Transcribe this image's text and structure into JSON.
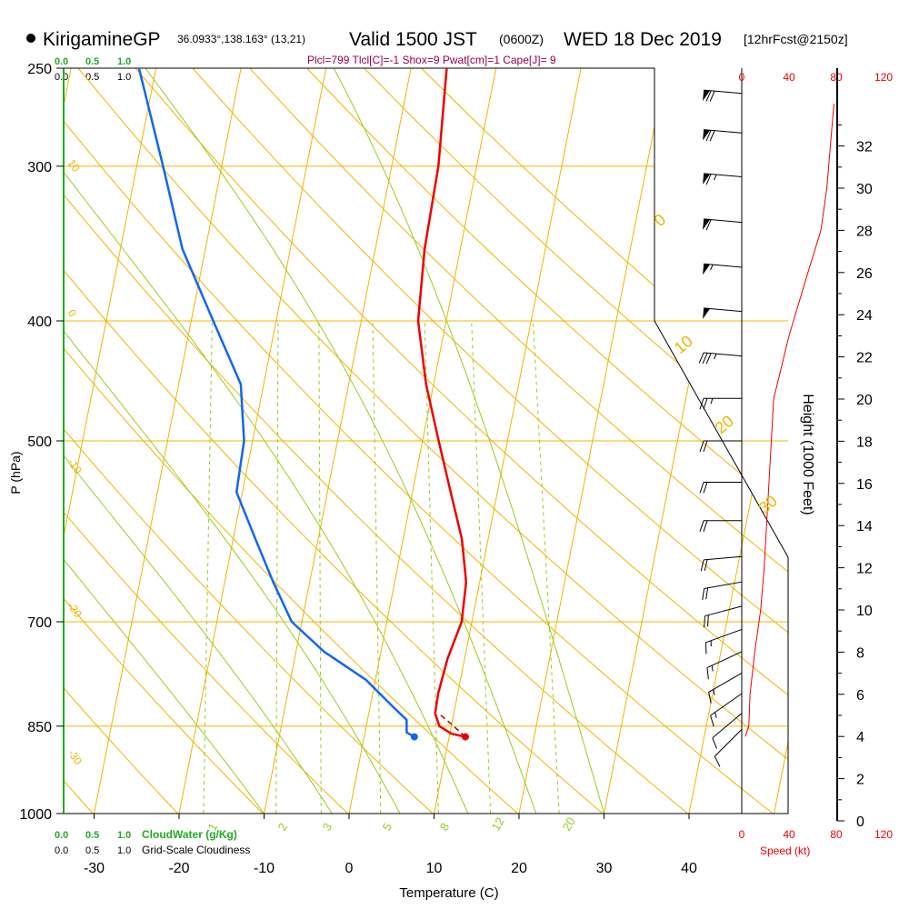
{
  "header": {
    "station": "KirigamineGP",
    "coords": "36.0933°,138.163° (13,21)",
    "valid": "Valid 1500 JST",
    "utc": "(0600Z)",
    "date": "WED 18 Dec 2019",
    "fcst": "[12hrFcst@2150z]",
    "params": "Plcl=799 Tlcl[C]=-1 Shox=9 Pwat[cm]=1 Cape[J]= 9"
  },
  "colors": {
    "temperature": "#ee0000",
    "dewpoint": "#1166ee",
    "isobar": "#f0b400",
    "isotherm": "#f0b400",
    "dry_adiabat": "#f0b400",
    "moist_adiabat": "#99cc22",
    "mixing_ratio": "#99cc22",
    "cloud": "#22aa22",
    "speed": "#ee0000",
    "params": "#990044"
  },
  "labels": {
    "cloud_scale": [
      "0.0",
      "0.5",
      "1.0"
    ],
    "cloudiness_scale": [
      "0.0",
      "0.5",
      "1.0"
    ],
    "cloudwater_title": "CloudWater (g/Kg)",
    "cloudiness_title": "Grid-Scale Cloudiness",
    "speed_title": "Speed (kt)",
    "pressure_axis_title": "P (hPa)",
    "temperature_axis_title": "Temperature (C)",
    "height_axis_title": "Height (1000 Feet)"
  },
  "chart_data": {
    "type": "skew-t",
    "title": "KirigamineGP 36.0933°,138.163° (13,21) Valid 1500 JST (0600Z) WED 18 Dec 2019 [12hrFcst@2150z]",
    "ylabel": "P (hPa)",
    "xlabel": "Temperature (C)",
    "xlim": [
      -35,
      45
    ],
    "ylim_hPa": [
      1000,
      250
    ],
    "pressure_ticks": [
      250,
      300,
      400,
      500,
      700,
      850,
      1000
    ],
    "temperature_ticks": [
      -30,
      -20,
      -10,
      0,
      10,
      20,
      30,
      40
    ],
    "mixing_ratio_labels": [
      "1",
      "2",
      "3",
      "5",
      "8",
      "12",
      "20"
    ],
    "moist_adiabat_labels": [
      "0",
      "10",
      "20",
      "30"
    ],
    "dry_adiabat_labels": [
      "10",
      "0",
      "-10",
      "-20",
      "-30"
    ],
    "temperature_profile": [
      {
        "p": 867,
        "t": 11.9
      },
      {
        "p": 862,
        "t": 10.2
      },
      {
        "p": 850,
        "t": 8.6
      },
      {
        "p": 830,
        "t": 7.8
      },
      {
        "p": 800,
        "t": 7.7
      },
      {
        "p": 750,
        "t": 8.0
      },
      {
        "p": 700,
        "t": 8.8
      },
      {
        "p": 650,
        "t": 8.4
      },
      {
        "p": 600,
        "t": 6.9
      },
      {
        "p": 550,
        "t": 4.5
      },
      {
        "p": 500,
        "t": 1.9
      },
      {
        "p": 450,
        "t": -0.9
      },
      {
        "p": 400,
        "t": -3.3
      },
      {
        "p": 350,
        "t": -4.2
      },
      {
        "p": 300,
        "t": -4.5
      },
      {
        "p": 250,
        "t": -5.8
      }
    ],
    "dewpoint_profile": [
      {
        "p": 867,
        "t": 5.9
      },
      {
        "p": 860,
        "t": 4.9
      },
      {
        "p": 840,
        "t": 4.6
      },
      {
        "p": 820,
        "t": 2.7
      },
      {
        "p": 780,
        "t": -1.1
      },
      {
        "p": 740,
        "t": -6.7
      },
      {
        "p": 700,
        "t": -11.2
      },
      {
        "p": 650,
        "t": -14.3
      },
      {
        "p": 600,
        "t": -17.4
      },
      {
        "p": 550,
        "t": -20.7
      },
      {
        "p": 500,
        "t": -21.0
      },
      {
        "p": 450,
        "t": -22.7
      },
      {
        "p": 400,
        "t": -27.4
      },
      {
        "p": 350,
        "t": -32.7
      },
      {
        "p": 300,
        "t": -36.9
      },
      {
        "p": 250,
        "t": -42.0
      }
    ],
    "parcel_profile": [
      {
        "p": 867,
        "t": 11.9
      },
      {
        "p": 845,
        "t": 9.8
      },
      {
        "p": 830,
        "t": 8.2
      }
    ],
    "speed_axis": {
      "ticks": [
        "0",
        "40",
        "80",
        "120"
      ],
      "range": [
        0,
        120
      ]
    },
    "height_axis": {
      "ticks": [
        "0",
        "2",
        "4",
        "6",
        "8",
        "10",
        "12",
        "14",
        "16",
        "18",
        "20",
        "22",
        "24",
        "26",
        "28",
        "30",
        "32"
      ],
      "units": "1000 ft"
    },
    "wind_speed_profile_kt": [
      {
        "h_kft": 4.0,
        "kt": 3
      },
      {
        "h_kft": 4.5,
        "kt": 6
      },
      {
        "h_kft": 6.0,
        "kt": 7
      },
      {
        "h_kft": 8.0,
        "kt": 11
      },
      {
        "h_kft": 10.0,
        "kt": 16
      },
      {
        "h_kft": 12.0,
        "kt": 19
      },
      {
        "h_kft": 13.0,
        "kt": 20
      },
      {
        "h_kft": 16.0,
        "kt": 23
      },
      {
        "h_kft": 20.0,
        "kt": 27
      },
      {
        "h_kft": 23.0,
        "kt": 40
      },
      {
        "h_kft": 26.0,
        "kt": 56
      },
      {
        "h_kft": 28.0,
        "kt": 67
      },
      {
        "h_kft": 30.0,
        "kt": 72
      },
      {
        "h_kft": 32.0,
        "kt": 75
      },
      {
        "h_kft": 34.0,
        "kt": 78
      }
    ],
    "wind_barbs": [
      {
        "p": 262,
        "spd": 70,
        "dir": 275
      },
      {
        "p": 282,
        "spd": 70,
        "dir": 275
      },
      {
        "p": 306,
        "spd": 65,
        "dir": 275
      },
      {
        "p": 333,
        "spd": 60,
        "dir": 275
      },
      {
        "p": 362,
        "spd": 55,
        "dir": 275
      },
      {
        "p": 393,
        "spd": 50,
        "dir": 275
      },
      {
        "p": 427,
        "spd": 35,
        "dir": 275
      },
      {
        "p": 462,
        "spd": 25,
        "dir": 270
      },
      {
        "p": 500,
        "spd": 20,
        "dir": 270
      },
      {
        "p": 540,
        "spd": 20,
        "dir": 270
      },
      {
        "p": 580,
        "spd": 20,
        "dir": 270
      },
      {
        "p": 620,
        "spd": 20,
        "dir": 265
      },
      {
        "p": 650,
        "spd": 20,
        "dir": 260
      },
      {
        "p": 680,
        "spd": 20,
        "dir": 255
      },
      {
        "p": 710,
        "spd": 15,
        "dir": 250
      },
      {
        "p": 740,
        "spd": 15,
        "dir": 245
      },
      {
        "p": 770,
        "spd": 15,
        "dir": 240
      },
      {
        "p": 800,
        "spd": 15,
        "dir": 235
      },
      {
        "p": 830,
        "spd": 10,
        "dir": 230
      },
      {
        "p": 855,
        "spd": 10,
        "dir": 225
      }
    ]
  }
}
